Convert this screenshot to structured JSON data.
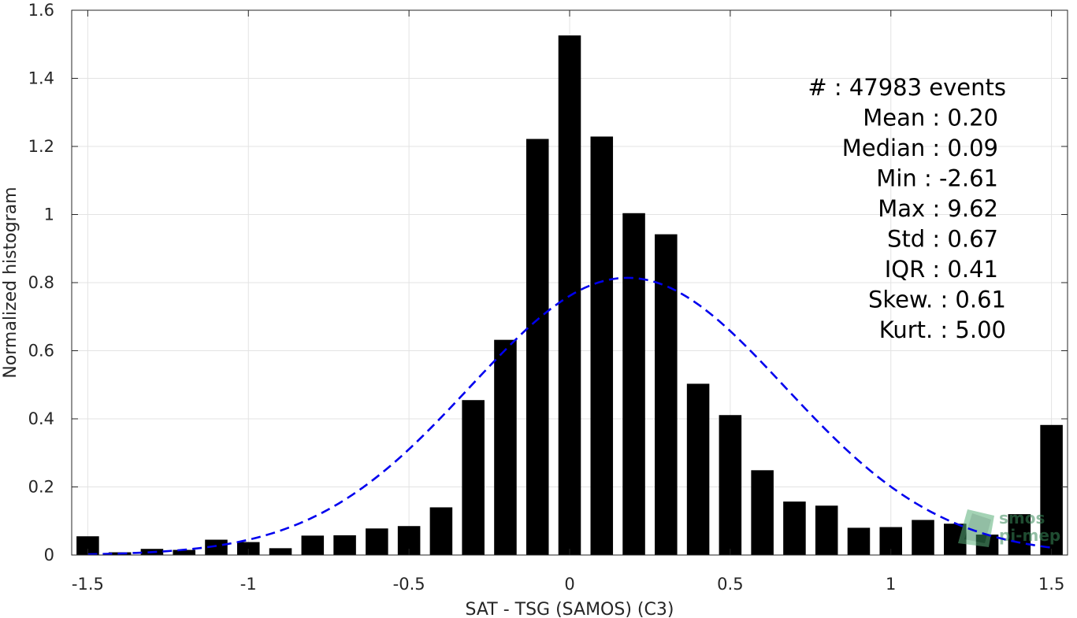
{
  "chart_data": {
    "type": "bar",
    "xlabel": "SAT - TSG (SAMOS) (C3)",
    "ylabel": "Normalized histogram",
    "xlim": [
      -1.55,
      1.55
    ],
    "ylim": [
      0,
      1.6
    ],
    "grid": true,
    "xticks": [
      -1.5,
      -1,
      -0.5,
      0,
      0.5,
      1,
      1.5
    ],
    "xtick_labels": [
      "-1.5",
      "-1",
      "-0.5",
      "0",
      "0.5",
      "1",
      "1.5"
    ],
    "yticks": [
      0,
      0.2,
      0.4,
      0.6,
      0.8,
      1,
      1.2,
      1.4,
      1.6
    ],
    "ytick_labels": [
      "0",
      "0.2",
      "0.4",
      "0.6",
      "0.8",
      "1",
      "1.2",
      "1.4",
      "1.6"
    ],
    "bar_width": 0.07,
    "bars": {
      "x": [
        -1.5,
        -1.4,
        -1.3,
        -1.2,
        -1.1,
        -1.0,
        -0.9,
        -0.8,
        -0.7,
        -0.6,
        -0.5,
        -0.4,
        -0.3,
        -0.2,
        -0.1,
        0.0,
        0.1,
        0.2,
        0.3,
        0.4,
        0.5,
        0.6,
        0.7,
        0.8,
        0.9,
        1.0,
        1.1,
        1.2,
        1.3,
        1.4,
        1.5
      ],
      "values": [
        0.055,
        0.008,
        0.018,
        0.015,
        0.045,
        0.038,
        0.02,
        0.057,
        0.058,
        0.078,
        0.085,
        0.14,
        0.455,
        0.632,
        1.222,
        1.526,
        1.229,
        1.004,
        0.942,
        0.503,
        0.411,
        0.249,
        0.157,
        0.145,
        0.08,
        0.082,
        0.103,
        0.092,
        0.06,
        0.12,
        0.382
      ],
      "color": "#000000"
    },
    "fit_curve": {
      "style": "dashed",
      "color": "#0000ee",
      "mean": 0.18,
      "std": 0.49,
      "x_range": [
        -1.5,
        1.5
      ]
    },
    "stats": [
      {
        "label": "#  : 47983 events",
        "align": "end-wide"
      },
      {
        "label": "Mean : 0.20",
        "align": "end"
      },
      {
        "label": "Median : 0.09",
        "align": "end"
      },
      {
        "label": "Min : -2.61",
        "align": "end"
      },
      {
        "label": "Max : 9.62",
        "align": "end"
      },
      {
        "label": "Std : 0.67",
        "align": "end"
      },
      {
        "label": "IQR : 0.41",
        "align": "end"
      },
      {
        "label": "Skew. : 0.61",
        "align": "end-wide"
      },
      {
        "label": "Kurt. : 5.00",
        "align": "end-wide"
      }
    ]
  },
  "watermark": {
    "line1": "smos",
    "line2": "pi-mep",
    "color": "#3a8a5a"
  }
}
